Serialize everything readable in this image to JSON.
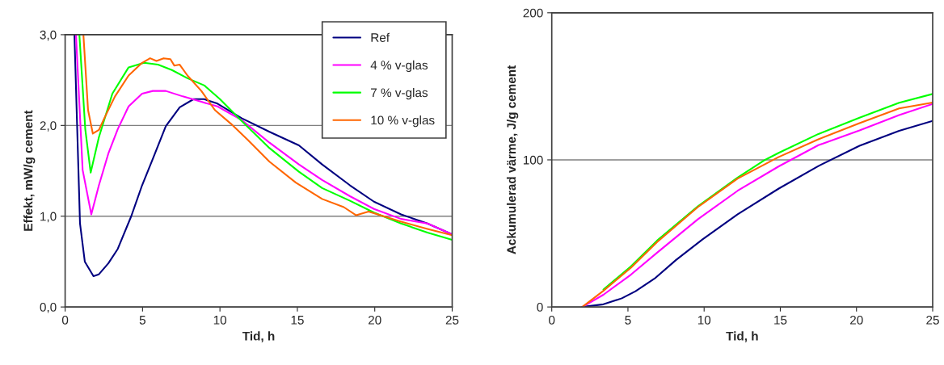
{
  "chart_data": [
    {
      "type": "line",
      "xlabel": "Tid, h",
      "ylabel": "Effekt, mW/g cement",
      "xlim": [
        0,
        25
      ],
      "ylim": [
        0,
        3
      ],
      "xticks": [
        0,
        5,
        10,
        15,
        20,
        25
      ],
      "yticks": [
        {
          "value": 0,
          "label": "0,0"
        },
        {
          "value": 1,
          "label": "1,0"
        },
        {
          "value": 2,
          "label": "2,0"
        },
        {
          "value": 3,
          "label": "3,0"
        }
      ],
      "grid": "y",
      "legend": "top right",
      "line_style": "solid",
      "marker": "none",
      "series": [
        {
          "name": "Ref",
          "color": "#000080",
          "x": [
            0.6,
            0.96,
            1.27,
            1.83,
            2.18,
            2.79,
            3.4,
            4.27,
            4.97,
            5.66,
            6.5,
            7.4,
            8.3,
            8.97,
            9.84,
            11.4,
            13.2,
            15.1,
            16.6,
            18.4,
            19.95,
            21.7,
            23.4,
            25
          ],
          "values": [
            3.0,
            0.92,
            0.5,
            0.34,
            0.36,
            0.48,
            0.64,
            1.0,
            1.34,
            1.63,
            1.99,
            2.2,
            2.29,
            2.29,
            2.24,
            2.08,
            1.93,
            1.78,
            1.57,
            1.34,
            1.16,
            1.02,
            0.92,
            0.8
          ]
        },
        {
          "name": "4 % v-glas",
          "color": "#ff00ff",
          "x": [
            0.7,
            1.13,
            1.69,
            2.18,
            2.79,
            3.4,
            4.1,
            4.97,
            5.66,
            6.5,
            7.6,
            8.8,
            9.84,
            11.4,
            13.2,
            15.1,
            16.6,
            18.4,
            19.95,
            21.7,
            23.4,
            25
          ],
          "values": [
            3.0,
            1.51,
            1.02,
            1.34,
            1.69,
            1.96,
            2.21,
            2.35,
            2.38,
            2.38,
            2.32,
            2.26,
            2.21,
            2.06,
            1.81,
            1.57,
            1.4,
            1.22,
            1.08,
            0.97,
            0.92,
            0.8
          ]
        },
        {
          "name": "7 % v-glas",
          "color": "#00ff00",
          "x": [
            0.92,
            1.3,
            1.65,
            2.18,
            3.05,
            4.1,
            5.1,
            6.0,
            6.9,
            7.9,
            9.0,
            10.0,
            11.4,
            13.2,
            15.1,
            16.6,
            18.4,
            19.95,
            21.7,
            23.4,
            25
          ],
          "values": [
            3.0,
            1.96,
            1.48,
            1.87,
            2.35,
            2.64,
            2.69,
            2.67,
            2.61,
            2.52,
            2.44,
            2.29,
            2.05,
            1.75,
            1.49,
            1.31,
            1.17,
            1.04,
            0.92,
            0.82,
            0.74
          ]
        },
        {
          "name": "10 % v-glas",
          "color": "#ff6600",
          "x": [
            1.18,
            1.48,
            1.79,
            2.18,
            2.53,
            3.22,
            4.1,
            4.97,
            5.49,
            5.9,
            6.36,
            6.8,
            7.05,
            7.4,
            7.9,
            8.8,
            9.67,
            10.7,
            11.8,
            13.2,
            14.9,
            16.6,
            18.0,
            18.8,
            19.6,
            21.7,
            23.4,
            25
          ],
          "values": [
            3.0,
            2.17,
            1.91,
            1.95,
            2.08,
            2.32,
            2.55,
            2.69,
            2.74,
            2.71,
            2.74,
            2.73,
            2.66,
            2.67,
            2.55,
            2.38,
            2.17,
            2.02,
            1.84,
            1.6,
            1.37,
            1.19,
            1.1,
            1.01,
            1.05,
            0.94,
            0.86,
            0.79
          ]
        }
      ]
    },
    {
      "type": "line",
      "xlabel": "Tid, h",
      "ylabel": "Ackumulerad värme, J/g cement",
      "xlim": [
        0,
        25
      ],
      "ylim": [
        0,
        200
      ],
      "xticks": [
        0,
        5,
        10,
        15,
        20,
        25
      ],
      "yticks": [
        0,
        100,
        200
      ],
      "grid": "y",
      "line_style": "solid",
      "marker": "none",
      "series": [
        {
          "color": "#000080",
          "x": [
            2,
            3.39,
            4.6,
            5.5,
            6.75,
            8.16,
            9.9,
            12.2,
            14.9,
            17.5,
            20.2,
            22.8,
            25
          ],
          "values": [
            0,
            1.8,
            5.9,
            10.7,
            19.3,
            32,
            46,
            63,
            80.5,
            95.8,
            109.6,
            119.7,
            126.5
          ]
        },
        {
          "color": "#ff00ff",
          "x": [
            2,
            3.39,
            5.2,
            6.9,
            9.6,
            12.2,
            14.9,
            17.5,
            20.2,
            22.8,
            25
          ],
          "values": [
            0,
            8.3,
            22,
            36.8,
            59.7,
            79,
            95.6,
            110,
            120,
            130.5,
            138
          ]
        },
        {
          "color": "#00ff00",
          "x": [
            3.39,
            5.2,
            6.9,
            9.6,
            12.2,
            14.0,
            14.9,
            17.5,
            20.2,
            22.8,
            25
          ],
          "values": [
            11.8,
            27.6,
            45,
            68.5,
            88,
            100,
            104.8,
            117.6,
            128.7,
            138.8,
            144.8
          ]
        },
        {
          "color": "#ff6600",
          "x": [
            2,
            3.39,
            5.2,
            6.9,
            9.6,
            12.2,
            14.9,
            17.5,
            20.2,
            22.8,
            25
          ],
          "values": [
            0,
            11,
            26.7,
            44,
            68,
            87.3,
            102,
            114,
            125,
            135,
            139
          ]
        }
      ]
    }
  ]
}
